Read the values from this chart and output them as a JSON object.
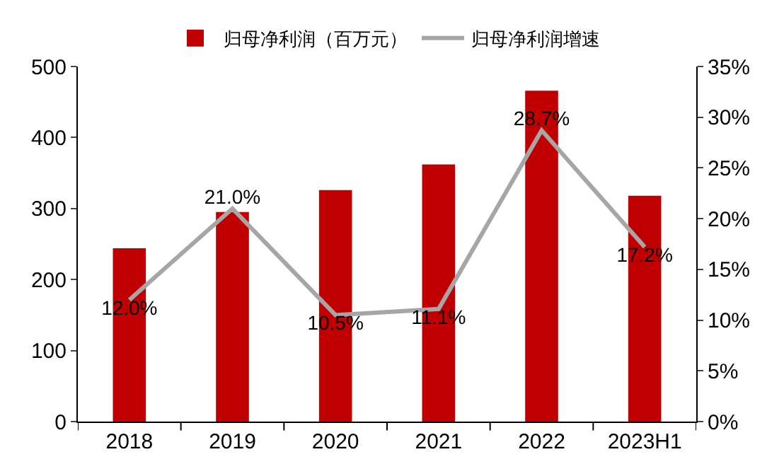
{
  "chart_data": {
    "type": "bar",
    "categories": [
      "2018",
      "2019",
      "2020",
      "2021",
      "2022",
      "2023H1"
    ],
    "series": [
      {
        "name": "归母净利润（百万元）",
        "color": "#c00000",
        "values": [
          244,
          295,
          326,
          362,
          466,
          318
        ]
      },
      {
        "name": "归母净利润增速",
        "type": "line",
        "axis": "y2",
        "color": "#a6a6a6",
        "values": [
          12.0,
          21.0,
          10.5,
          11.1,
          28.7,
          17.2
        ],
        "value_labels": [
          "12.0%",
          "21.0%",
          "10.5%",
          "11.1%",
          "28.7%",
          "17.2%"
        ]
      }
    ],
    "ylim": [
      0,
      500
    ],
    "yticks": [
      0,
      100,
      200,
      300,
      400,
      500
    ],
    "y2lim": [
      0,
      35
    ],
    "y2ticks": [
      {
        "value": 0,
        "label": "0%"
      },
      {
        "value": 5,
        "label": "5%"
      },
      {
        "value": 10,
        "label": "10%"
      },
      {
        "value": 15,
        "label": "15%"
      },
      {
        "value": 20,
        "label": "20%"
      },
      {
        "value": 25,
        "label": "25%"
      },
      {
        "value": 30,
        "label": "30%"
      },
      {
        "value": 35,
        "label": "35%"
      }
    ],
    "grid": false,
    "legend": "top",
    "marker": "none",
    "line_style": "solid"
  }
}
